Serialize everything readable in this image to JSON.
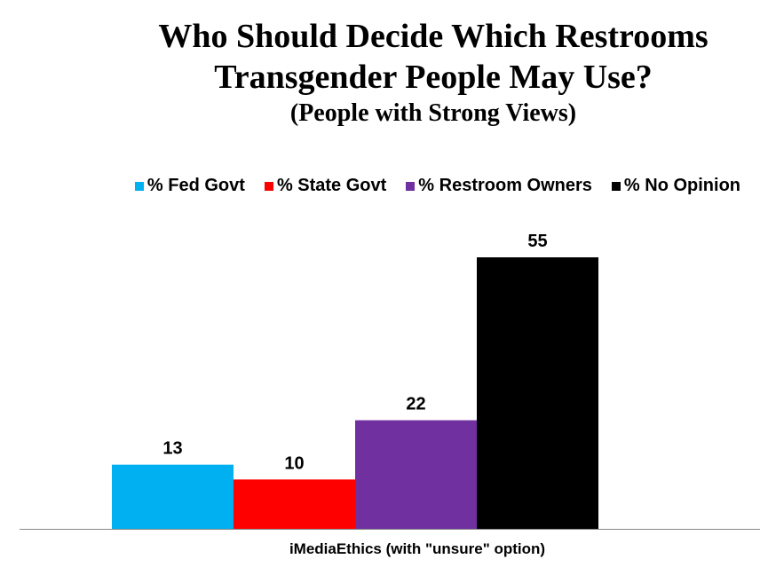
{
  "chart_data": {
    "type": "bar",
    "title": "Who Should Decide Which Restrooms Transgender People May Use?",
    "title_line1": "Who Should Decide Which Restrooms",
    "title_line2": "Transgender People May Use?",
    "subtitle": "(People with Strong Views)",
    "categories": [
      "iMediaEthics (with \"unsure\" option)"
    ],
    "series": [
      {
        "name": "% Fed Govt",
        "values": [
          13
        ],
        "color": "#00B0F0"
      },
      {
        "name": "% State Govt",
        "values": [
          10
        ],
        "color": "#FF0000"
      },
      {
        "name": "% Restroom Owners",
        "values": [
          22
        ],
        "color": "#7030A0"
      },
      {
        "name": "% No Opinion",
        "values": [
          55
        ],
        "color": "#000000"
      }
    ],
    "ylim": [
      0,
      60
    ],
    "grid": false,
    "legend_position": "top",
    "data_labels": true
  }
}
